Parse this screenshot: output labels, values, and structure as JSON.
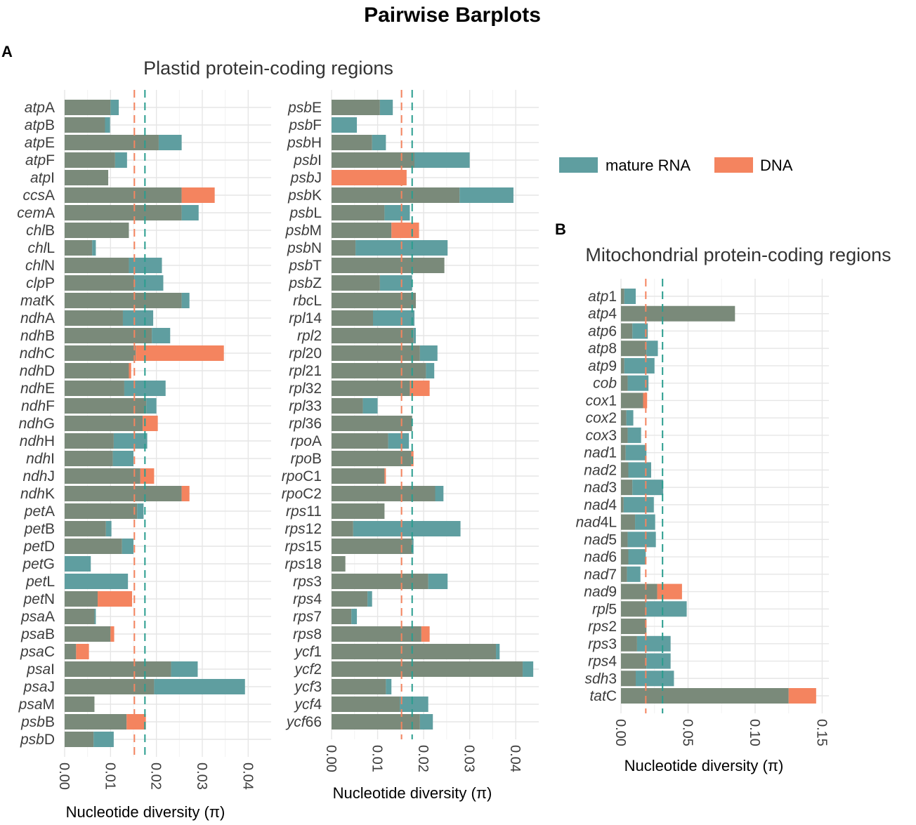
{
  "figure": {
    "title": "Pairwise Barplots",
    "panel_a_letter": "A",
    "panel_a_title": "Plastid protein-coding regions",
    "panel_b_letter": "B",
    "panel_b_title": "Mitochondrial protein-coding regions"
  },
  "legend": {
    "items": [
      {
        "label": "mature RNA",
        "color": "#5f9ea0"
      },
      {
        "label": "DNA",
        "color": "#f4845f"
      }
    ]
  },
  "colors": {
    "overlap": "#7a8a7a",
    "rna": "#5f9ea0",
    "dna": "#f4845f",
    "rna_mean_line": "#2a9d8f",
    "dna_mean_line": "#f4845f"
  },
  "chart_data": [
    {
      "type": "bar",
      "orientation": "horizontal",
      "title": "Plastid protein-coding regions",
      "xlabel": "Nucleotide diversity (π)",
      "xlim": [
        0,
        0.045
      ],
      "xticks": [
        0.0,
        0.01,
        0.02,
        0.03,
        0.04
      ],
      "xtick_labels": [
        "0.00",
        "0.01",
        "0.02",
        "0.03",
        "0.04"
      ],
      "italic_prefix_len": 3,
      "mean_lines": {
        "DNA": 0.0152,
        "mature RNA": 0.0175
      },
      "series_names": [
        "mature RNA",
        "DNA"
      ],
      "categories": [
        "atpA",
        "atpB",
        "atpE",
        "atpF",
        "atpI",
        "ccsA",
        "cemA",
        "chlB",
        "chlL",
        "chlN",
        "clpP",
        "matK",
        "ndhA",
        "ndhB",
        "ndhC",
        "ndhD",
        "ndhE",
        "ndhF",
        "ndhG",
        "ndhH",
        "ndhI",
        "ndhJ",
        "ndhK",
        "petA",
        "petB",
        "petD",
        "petG",
        "petL",
        "petN",
        "psaA",
        "psaB",
        "psaC",
        "psaI",
        "psaJ",
        "psaM",
        "psbB",
        "psbD"
      ],
      "rna": [
        0.0118,
        0.0099,
        0.0255,
        0.0136,
        0.0095,
        0.0255,
        0.0292,
        0.014,
        0.0068,
        0.0212,
        0.0215,
        0.0272,
        0.0193,
        0.023,
        0.0155,
        0.014,
        0.022,
        0.02,
        0.017,
        0.018,
        0.015,
        0.0165,
        0.0255,
        0.0172,
        0.0102,
        0.015,
        0.0057,
        0.0138,
        0.0072,
        0.0068,
        0.01,
        0.0025,
        0.029,
        0.0393,
        0.0065,
        0.0135,
        0.0107
      ],
      "dna": [
        0.01,
        0.0088,
        0.0205,
        0.011,
        0.0095,
        0.0327,
        0.0255,
        0.014,
        0.006,
        0.014,
        0.0152,
        0.0255,
        0.0127,
        0.019,
        0.0347,
        0.0145,
        0.013,
        0.0178,
        0.0203,
        0.0107,
        0.0105,
        0.0195,
        0.0272,
        0.0158,
        0.009,
        0.0125,
        0.0,
        0.0,
        0.0147,
        0.0065,
        0.0108,
        0.0053,
        0.0232,
        0.0195,
        0.0065,
        0.0177,
        0.0063
      ]
    },
    {
      "type": "bar",
      "orientation": "horizontal",
      "title": "Plastid protein-coding regions",
      "xlabel": "Nucleotide diversity (π)",
      "xlim": [
        0,
        0.045
      ],
      "xticks": [
        0.0,
        0.01,
        0.02,
        0.03,
        0.04
      ],
      "xtick_labels": [
        "0.00",
        "0.01",
        "0.02",
        "0.03",
        "0.04"
      ],
      "italic_prefix_len": 3,
      "mean_lines": {
        "DNA": 0.0152,
        "mature RNA": 0.0175
      },
      "series_names": [
        "mature RNA",
        "DNA"
      ],
      "categories": [
        "psbE",
        "psbF",
        "psbH",
        "psbI",
        "psbJ",
        "psbK",
        "psbL",
        "psbM",
        "psbN",
        "psbT",
        "psbZ",
        "rbcL",
        "rpl14",
        "rpl2",
        "rpl20",
        "rpl21",
        "rpl32",
        "rpl33",
        "rpl36",
        "rpoA",
        "rpoB",
        "rpoC1",
        "rpoC2",
        "rps11",
        "rps12",
        "rps15",
        "rps18",
        "rps3",
        "rps4",
        "rps7",
        "rps8",
        "ycf1",
        "ycf2",
        "ycf3",
        "ycf4",
        "ycf66"
      ],
      "rna": [
        0.0133,
        0.0055,
        0.0118,
        0.03,
        0.0,
        0.0395,
        0.017,
        0.013,
        0.0252,
        0.0245,
        0.0175,
        0.0183,
        0.018,
        0.0183,
        0.023,
        0.0223,
        0.017,
        0.01,
        0.0175,
        0.0168,
        0.0173,
        0.0115,
        0.0243,
        0.0115,
        0.028,
        0.0178,
        0.003,
        0.0252,
        0.0088,
        0.0055,
        0.0195,
        0.0365,
        0.0438,
        0.013,
        0.021,
        0.022
      ],
      "dna": [
        0.0105,
        0.0,
        0.0088,
        0.018,
        0.0163,
        0.0278,
        0.0115,
        0.019,
        0.0052,
        0.0245,
        0.0105,
        0.0183,
        0.009,
        0.0178,
        0.0192,
        0.0205,
        0.0213,
        0.0068,
        0.0175,
        0.0123,
        0.0178,
        0.0118,
        0.0225,
        0.0115,
        0.0047,
        0.0175,
        0.003,
        0.021,
        0.0078,
        0.0043,
        0.0213,
        0.0357,
        0.0415,
        0.0118,
        0.0148,
        0.0192
      ]
    },
    {
      "type": "bar",
      "orientation": "horizontal",
      "title": "Mitochondrial protein-coding regions",
      "xlabel": "Nucleotide diversity (π)",
      "xlim": [
        0,
        0.155
      ],
      "xticks": [
        0.0,
        0.05,
        0.1,
        0.15
      ],
      "xtick_labels": [
        "0.00",
        "0.05",
        "0.10",
        "0.15"
      ],
      "italic_prefix_len": 3,
      "mean_lines": {
        "DNA": 0.0185,
        "mature RNA": 0.031
      },
      "series_names": [
        "mature RNA",
        "DNA"
      ],
      "categories": [
        "atp1",
        "atp4",
        "atp6",
        "atp8",
        "atp9",
        "cob",
        "cox1",
        "cox2",
        "cox3",
        "nad1",
        "nad2",
        "nad3",
        "nad4",
        "nad4L",
        "nad5",
        "nad6",
        "nad7",
        "nad9",
        "rpl5",
        "rps2",
        "rps3",
        "rps4",
        "sdh3",
        "tatC"
      ],
      "rna": [
        0.011,
        0.085,
        0.02,
        0.0275,
        0.025,
        0.0205,
        0.0165,
        0.0092,
        0.015,
        0.019,
        0.0225,
        0.0315,
        0.0245,
        0.0255,
        0.026,
        0.0185,
        0.0145,
        0.027,
        0.049,
        0.019,
        0.037,
        0.037,
        0.0395,
        0.125
      ],
      "dna": [
        0.0025,
        0.085,
        0.0085,
        0.019,
        0.0025,
        0.005,
        0.0195,
        0.004,
        0.005,
        0.0035,
        0.0055,
        0.0085,
        0.002,
        0.0105,
        0.005,
        0.0055,
        0.0045,
        0.0455,
        0.0185,
        0.019,
        0.012,
        0.019,
        0.011,
        0.1455
      ]
    }
  ]
}
